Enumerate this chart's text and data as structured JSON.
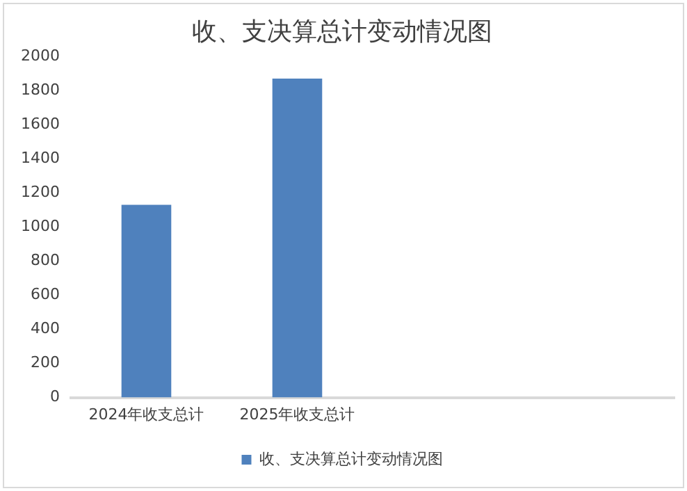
{
  "chart_data": {
    "type": "bar",
    "title": "收、支决算总计变动情况图",
    "categories": [
      "2024年收支总计",
      "2025年收支总计",
      null,
      null
    ],
    "series": [
      {
        "name": "收、支决算总计变动情况图",
        "color": "#4f81bd",
        "values": [
          1130,
          1870,
          null,
          null
        ]
      }
    ],
    "ylim": [
      0,
      2000
    ],
    "yticks": [
      0,
      200,
      400,
      600,
      800,
      1000,
      1200,
      1400,
      1600,
      1800,
      2000
    ],
    "grid": false,
    "legend": "bottom"
  }
}
